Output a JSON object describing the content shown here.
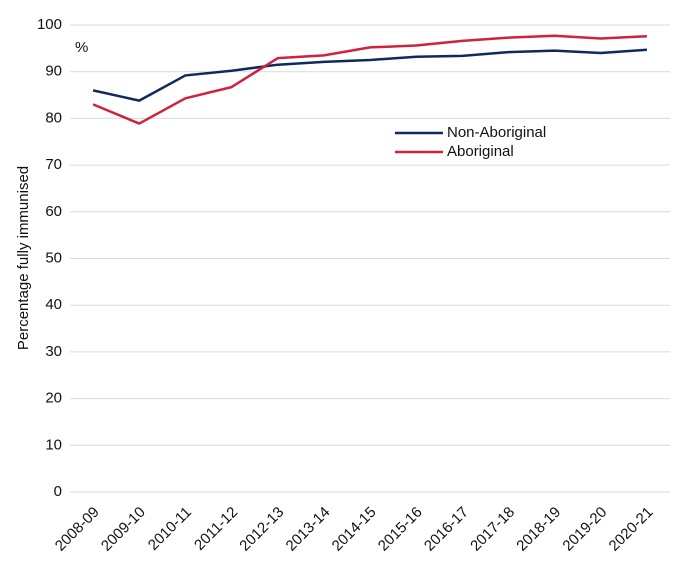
{
  "chart_data": {
    "type": "line",
    "y_label": "Percentage fully immunised",
    "unit_label": "%",
    "categories": [
      "2008-09",
      "2009-10",
      "2010-11",
      "2011-12",
      "2012-13",
      "2013-14",
      "2014-15",
      "2015-16",
      "2016-17",
      "2017-18",
      "2018-19",
      "2019-20",
      "2020-21"
    ],
    "series": [
      {
        "name": "Non-Aboriginal",
        "color": "#0f2a5c",
        "values": [
          86.0,
          83.8,
          89.2,
          90.2,
          91.5,
          92.1,
          92.5,
          93.2,
          93.4,
          94.2,
          94.5,
          94.0,
          94.7
        ]
      },
      {
        "name": "Aboriginal",
        "color": "#d0213f",
        "values": [
          83.0,
          78.9,
          84.3,
          86.7,
          92.9,
          93.5,
          95.2,
          95.6,
          96.6,
          97.3,
          97.7,
          97.1,
          97.6
        ]
      }
    ],
    "ylim": [
      0,
      100
    ],
    "yticks": [
      0,
      10,
      20,
      30,
      40,
      50,
      60,
      70,
      80,
      90,
      100
    ],
    "grid": true,
    "legend": "upper-center"
  }
}
